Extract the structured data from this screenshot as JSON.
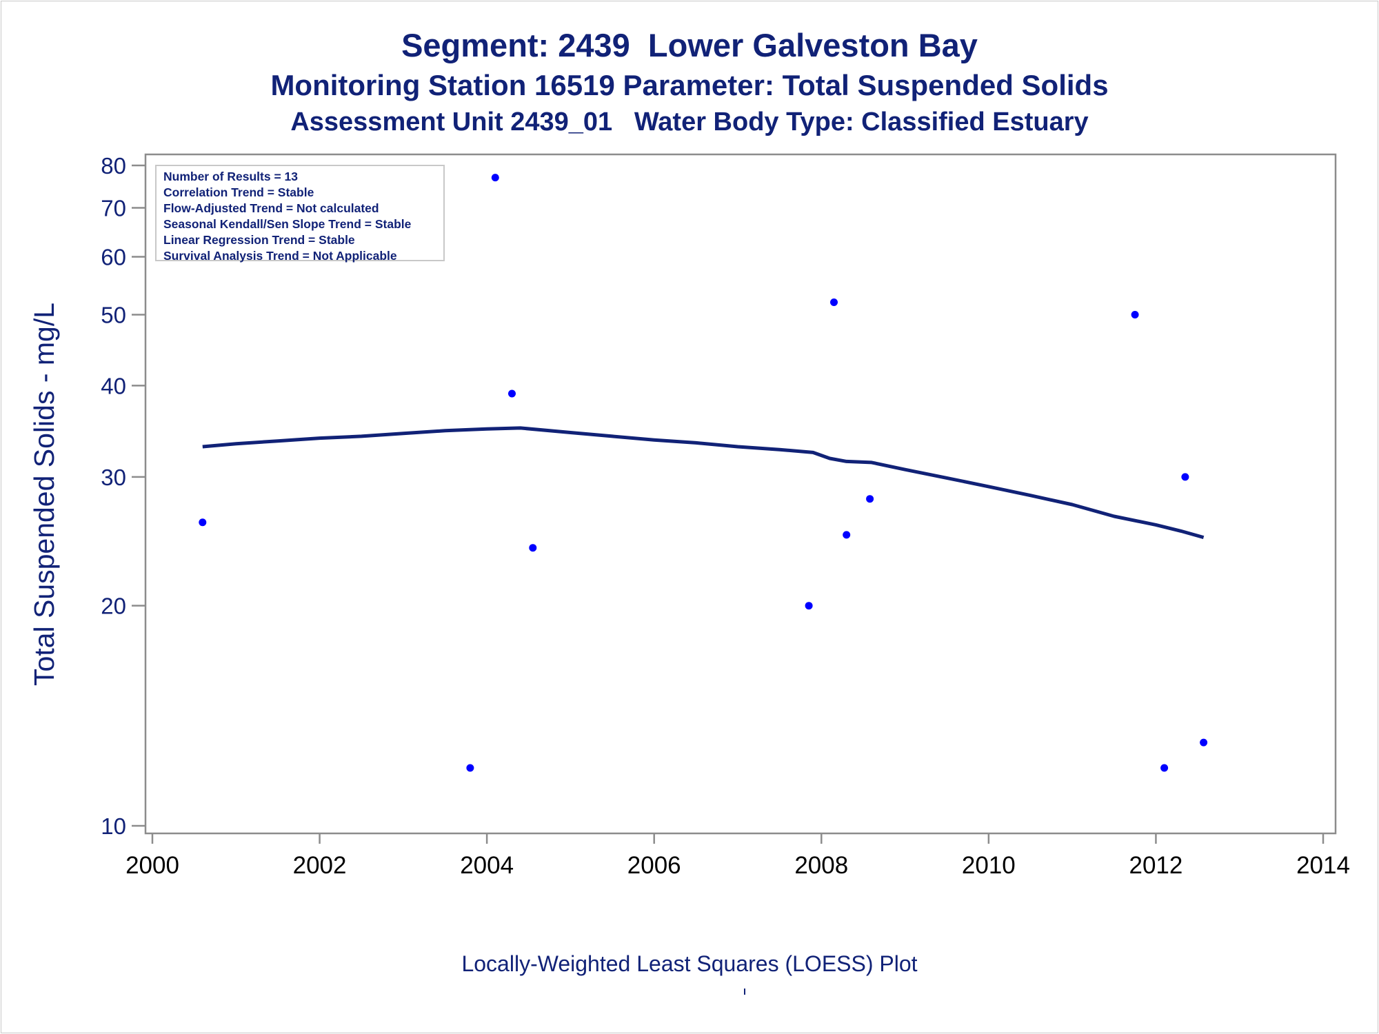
{
  "titles": {
    "line1": "Segment: 2439  Lower Galveston Bay",
    "line2": "Monitoring Station 16519 Parameter: Total Suspended Solids",
    "line3": "Assessment Unit 2439_01   Water Body Type: Classified Estuary"
  },
  "stats": [
    "Number of Results = 13",
    "Correlation Trend = Stable",
    "Flow-Adjusted Trend = Not calculated",
    "Seasonal Kendall/Sen Slope Trend = Stable",
    "Linear Regression Trend = Stable",
    "Survival Analysis Trend = Not Applicable"
  ],
  "footnote": "Locally-Weighted Least Squares (LOESS) Plot",
  "colors": {
    "text": "#112277",
    "points": "#0000ff",
    "loess_line": "#112277",
    "axis": "#8c8c8c"
  },
  "chart_data": {
    "type": "scatter",
    "ylabel": "Total Suspended Solids - mg/L",
    "xlabel": "",
    "y_scale": "log",
    "xlim": [
      2000,
      2014
    ],
    "ylim": [
      10,
      83
    ],
    "x_ticks": [
      2000,
      2002,
      2004,
      2006,
      2008,
      2010,
      2012,
      2014
    ],
    "y_ticks": [
      10,
      20,
      30,
      40,
      50,
      60,
      70,
      80
    ],
    "points": [
      {
        "x": 2000.6,
        "y": 26
      },
      {
        "x": 2003.8,
        "y": 12
      },
      {
        "x": 2004.1,
        "y": 77
      },
      {
        "x": 2004.3,
        "y": 39
      },
      {
        "x": 2004.55,
        "y": 24
      },
      {
        "x": 2007.85,
        "y": 20
      },
      {
        "x": 2008.15,
        "y": 52
      },
      {
        "x": 2008.3,
        "y": 25
      },
      {
        "x": 2008.58,
        "y": 28
      },
      {
        "x": 2011.75,
        "y": 50
      },
      {
        "x": 2012.1,
        "y": 12
      },
      {
        "x": 2012.35,
        "y": 30
      },
      {
        "x": 2012.57,
        "y": 13
      }
    ],
    "loess": {
      "x": [
        2000.6,
        2001.0,
        2001.5,
        2002.0,
        2002.5,
        2003.0,
        2003.5,
        2004.0,
        2004.4,
        2005.0,
        2005.5,
        2006.0,
        2006.5,
        2007.0,
        2007.5,
        2007.9,
        2008.1,
        2008.3,
        2008.6,
        2009.0,
        2009.5,
        2010.0,
        2010.5,
        2011.0,
        2011.5,
        2012.0,
        2012.3,
        2012.57
      ],
      "y": [
        33.0,
        33.3,
        33.6,
        33.9,
        34.1,
        34.4,
        34.7,
        34.9,
        35.0,
        34.5,
        34.1,
        33.7,
        33.4,
        33.0,
        32.7,
        32.4,
        31.8,
        31.5,
        31.4,
        30.7,
        29.9,
        29.1,
        28.3,
        27.5,
        26.5,
        25.8,
        25.3,
        24.8
      ]
    }
  }
}
